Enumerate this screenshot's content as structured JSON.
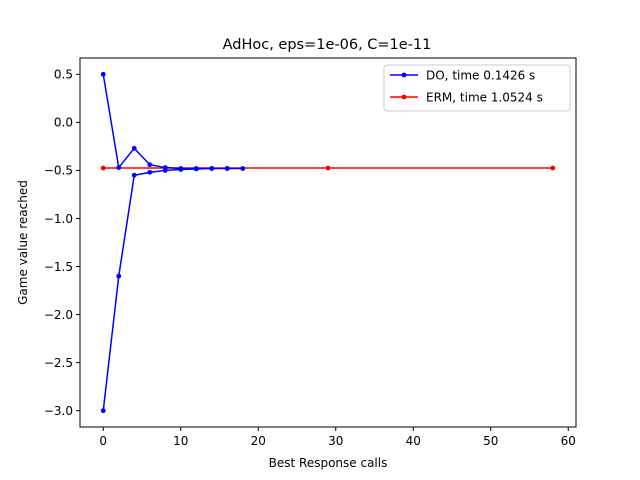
{
  "chart_data": {
    "type": "line",
    "title": "AdHoc, eps=1e-06, C=1e-11",
    "xlabel": "Best Response calls",
    "ylabel": "Game value reached",
    "xlim": [
      -3,
      61
    ],
    "ylim": [
      -3.17,
      0.67
    ],
    "xticks": [
      0,
      10,
      20,
      30,
      40,
      50,
      60
    ],
    "yticks": [
      0.5,
      0.0,
      -0.5,
      -1.0,
      -1.5,
      -2.0,
      -2.5,
      -3.0
    ],
    "xtick_labels": [
      "0",
      "10",
      "20",
      "30",
      "40",
      "50",
      "60"
    ],
    "ytick_labels": [
      "0.5",
      "0.0",
      "−0.5",
      "−1.0",
      "−1.5",
      "−2.0",
      "−2.5",
      "−3.0"
    ],
    "grid": false,
    "legend_position": "top-right",
    "series": [
      {
        "name": "DO, time 0.1426 s",
        "color": "#0000ff",
        "points": [
          [
            0,
            0.5
          ],
          [
            2,
            -0.47
          ],
          [
            4,
            -0.27
          ],
          [
            6,
            -0.44
          ],
          [
            8,
            -0.47
          ],
          [
            10,
            -0.48
          ],
          [
            12,
            -0.48
          ],
          [
            14,
            -0.48
          ],
          [
            16,
            -0.48
          ],
          [
            18,
            -0.48
          ],
          [
            16,
            -0.48
          ],
          [
            14,
            -0.48
          ],
          [
            12,
            -0.485
          ],
          [
            10,
            -0.49
          ],
          [
            8,
            -0.5
          ],
          [
            6,
            -0.52
          ],
          [
            4,
            -0.55
          ],
          [
            2,
            -1.6
          ],
          [
            0,
            -3.0
          ]
        ]
      },
      {
        "name": "ERM, time 1.0524 s",
        "color": "#ff0000",
        "points": [
          [
            0,
            -0.475
          ],
          [
            29,
            -0.475
          ],
          [
            58,
            -0.475
          ]
        ]
      }
    ]
  }
}
